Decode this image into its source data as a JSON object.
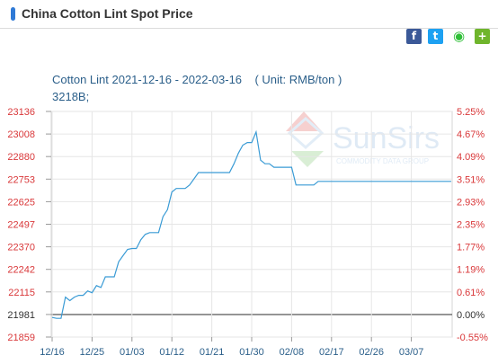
{
  "header": {
    "title": "China Cotton Lint Spot Price"
  },
  "share": {
    "facebook_icon": "f",
    "twitter_icon": "t",
    "wechat_icon": "◉",
    "more_icon": "+"
  },
  "watermark": {
    "brand": "SunSirs",
    "tagline": "COMMODITY DATA GROUP"
  },
  "colors": {
    "series": "#3a9bd5",
    "left_axis_text": "#d9383a",
    "right_axis_text": "#d9383a",
    "x_axis_text": "#2b5f8a",
    "grid": "#e6e6e6",
    "baseline": "#666666"
  },
  "chart_data": {
    "type": "line",
    "title": "Cotton Lint 2021-12-16 - 2022-03-16    ( Unit: RMB/ton )",
    "subtitle": "3218B;",
    "xlabel": "",
    "ylabel": "",
    "base_value": 21981,
    "ylim": [
      21859,
      23136
    ],
    "left_ticks": [
      "23136",
      "23008",
      "22880",
      "22753",
      "22625",
      "22497",
      "22370",
      "22242",
      "22115",
      "21981",
      "21859"
    ],
    "right_ticks": [
      "5.25%",
      "4.67%",
      "4.09%",
      "3.51%",
      "2.93%",
      "2.35%",
      "1.77%",
      "1.19%",
      "0.61%",
      "0.00%",
      "-0.55%"
    ],
    "x_ticks": [
      "12/16",
      "12/25",
      "01/03",
      "01/12",
      "01/21",
      "01/30",
      "02/08",
      "02/17",
      "02/26",
      "03/07"
    ],
    "grid": true,
    "legend": "none",
    "series": [
      {
        "x": [
          "12/16",
          "12/17",
          "12/18",
          "12/19",
          "12/20",
          "12/21",
          "12/22",
          "12/23",
          "12/24",
          "12/25",
          "12/26",
          "12/27",
          "12/28",
          "12/29",
          "12/30",
          "12/31",
          "01/01",
          "01/02",
          "01/03",
          "01/04",
          "01/05",
          "01/06",
          "01/07",
          "01/08",
          "01/09",
          "01/10",
          "01/11",
          "01/12",
          "01/13",
          "01/14",
          "01/15",
          "01/16",
          "01/17",
          "01/18",
          "01/19",
          "01/20",
          "01/21",
          "01/22",
          "01/23",
          "01/24",
          "01/25",
          "01/26",
          "01/27",
          "01/28",
          "01/29",
          "01/30",
          "01/31",
          "02/01",
          "02/02",
          "02/03",
          "02/04",
          "02/05",
          "02/06",
          "02/07",
          "02/08",
          "02/09",
          "02/10",
          "02/11",
          "02/12",
          "02/13",
          "02/14",
          "02/15",
          "02/16",
          "02/17",
          "02/18",
          "02/19",
          "02/20",
          "02/21",
          "02/22",
          "02/23",
          "02/24",
          "02/25",
          "02/26",
          "02/27",
          "02/28",
          "03/01",
          "03/02",
          "03/03",
          "03/04",
          "03/05",
          "03/06",
          "03/07",
          "03/08",
          "03/09",
          "03/10",
          "03/11",
          "03/12",
          "03/13",
          "03/14",
          "03/15",
          "03/16"
        ],
        "values": [
          21970,
          21965,
          21965,
          22085,
          22065,
          22085,
          22095,
          22095,
          22120,
          22110,
          22150,
          22140,
          22200,
          22200,
          22200,
          22285,
          22320,
          22355,
          22360,
          22360,
          22410,
          22440,
          22450,
          22450,
          22450,
          22540,
          22580,
          22680,
          22700,
          22700,
          22700,
          22720,
          22755,
          22790,
          22790,
          22790,
          22790,
          22790,
          22790,
          22790,
          22790,
          22840,
          22900,
          22945,
          22960,
          22960,
          23020,
          22860,
          22840,
          22840,
          22820,
          22820,
          22820,
          22820,
          22820,
          22720,
          22720,
          22720,
          22720,
          22720,
          22740,
          22740,
          22740,
          22740,
          22740,
          22740,
          22740,
          22740,
          22740,
          22740,
          22740,
          22740,
          22740,
          22740,
          22740,
          22740,
          22740,
          22740,
          22740,
          22740,
          22740,
          22740,
          22740,
          22740,
          22740,
          22740,
          22740,
          22740,
          22740,
          22740,
          22740
        ]
      }
    ]
  }
}
